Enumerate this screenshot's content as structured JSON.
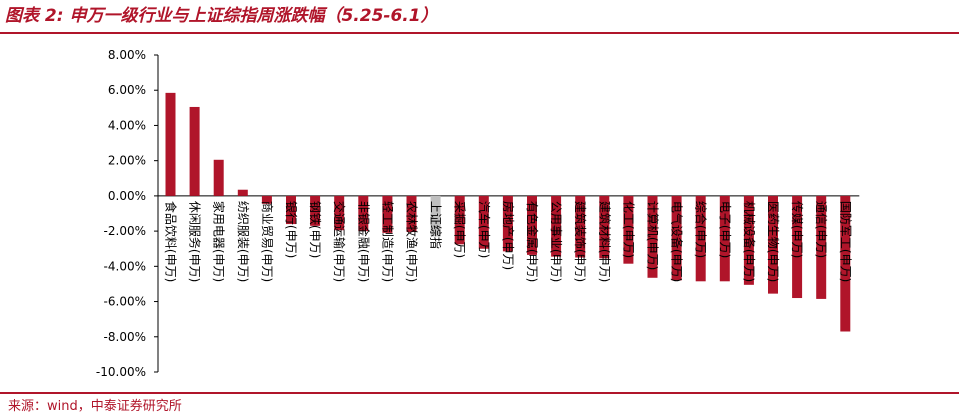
{
  "header": {
    "title": "图表 2: 申万一级行业与上证综指周涨跌幅（5.25-6.1）"
  },
  "footer": {
    "source": "来源：wind，中泰证券研究所"
  },
  "colors": {
    "accent": "#b0152a",
    "bar": "#b0152a",
    "index_bar": "#bfbfbf"
  },
  "chart_data": {
    "type": "bar",
    "title": "图表 2: 申万一级行业与上证综指周涨跌幅（5.25-6.1）",
    "xlabel": "",
    "ylabel": "",
    "ylim": [
      -10,
      8
    ],
    "yticks": [
      8,
      6,
      4,
      2,
      0,
      -2,
      -4,
      -6,
      -8,
      -10
    ],
    "ytick_labels": [
      "8.00%",
      "6.00%",
      "4.00%",
      "2.00%",
      "0.00%",
      "-2.00%",
      "-4.00%",
      "-6.00%",
      "-8.00%",
      "-10.00%"
    ],
    "grid": false,
    "legend": "none",
    "categories": [
      "食品饮料(申万)",
      "休闲服务(申万)",
      "家用电器(申万)",
      "纺织服装(申万)",
      "商业贸易(申万)",
      "银行(申万)",
      "钢铁(申万)",
      "交通运输(申万)",
      "非银金融(申万)",
      "轻工制造(申万)",
      "农林牧渔(申万)",
      "上证综指",
      "采掘(申万)",
      "汽车(申万)",
      "房地产(申万)",
      "有色金属(申万)",
      "公用事业(申万)",
      "建筑装饰(申万)",
      "建筑材料(申万)",
      "化工(申万)",
      "计算机(申万)",
      "电气设备(申万)",
      "综合(申万)",
      "电子(申万)",
      "机械设备(申万)",
      "医药生物(申万)",
      "传媒(申万)",
      "通信(申万)",
      "国防军工(申万)"
    ],
    "values": [
      5.85,
      5.05,
      2.05,
      0.35,
      -0.45,
      -1.6,
      -1.7,
      -1.95,
      -2.0,
      -2.1,
      -2.05,
      -2.3,
      -2.75,
      -3.0,
      -3.15,
      -3.35,
      -3.45,
      -3.5,
      -3.55,
      -3.85,
      -4.65,
      -4.8,
      -4.85,
      -4.85,
      -5.05,
      -5.55,
      -5.8,
      -5.85,
      -7.7
    ],
    "highlight_index": 11
  }
}
